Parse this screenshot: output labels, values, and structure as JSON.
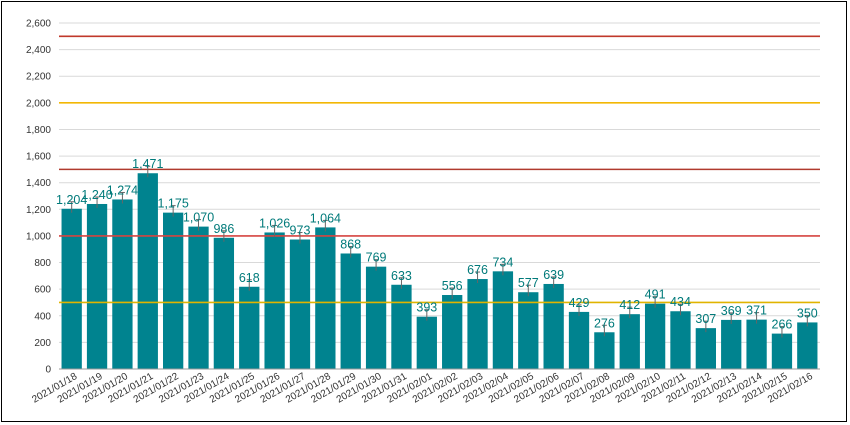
{
  "chart_data": {
    "type": "bar",
    "categories": [
      "2021/01/18",
      "2021/01/19",
      "2021/01/20",
      "2021/01/21",
      "2021/01/22",
      "2021/01/23",
      "2021/01/24",
      "2021/01/25",
      "2021/01/26",
      "2021/01/27",
      "2021/01/28",
      "2021/01/29",
      "2021/01/30",
      "2021/01/31",
      "2021/02/01",
      "2021/02/02",
      "2021/02/03",
      "2021/02/04",
      "2021/02/05",
      "2021/02/06",
      "2021/02/07",
      "2021/02/08",
      "2021/02/09",
      "2021/02/10",
      "2021/02/11",
      "2021/02/12",
      "2021/02/13",
      "2021/02/14",
      "2021/02/15",
      "2021/02/16"
    ],
    "values": [
      1204,
      1240,
      1274,
      1471,
      1175,
      1070,
      986,
      618,
      1026,
      973,
      1064,
      868,
      769,
      633,
      393,
      556,
      676,
      734,
      577,
      639,
      429,
      276,
      412,
      491,
      434,
      307,
      369,
      371,
      266,
      350
    ],
    "value_labels": [
      "1,204",
      "1,240",
      "1,274",
      "1,471",
      "1,175",
      "1,070",
      "986",
      "618",
      "1,026",
      "973",
      "1,064",
      "868",
      "769",
      "633",
      "393",
      "556",
      "676",
      "734",
      "577",
      "639",
      "429",
      "276",
      "412",
      "491",
      "434",
      "307",
      "369",
      "371",
      "266",
      "350"
    ],
    "ylim": [
      0,
      2600
    ],
    "yticks": [
      0,
      200,
      400,
      600,
      800,
      1000,
      1200,
      1400,
      1600,
      1800,
      2000,
      2200,
      2400,
      2600
    ],
    "ytick_labels": [
      "0",
      "200",
      "400",
      "600",
      "800",
      "1,000",
      "1,200",
      "1,400",
      "1,600",
      "1,800",
      "2,000",
      "2,200",
      "2,400",
      "2,600"
    ],
    "grid": true,
    "bar_color": "#00838f",
    "label_color": "#007a7a",
    "reference_lines": [
      {
        "value": 2500,
        "color": "#c0392b"
      },
      {
        "value": 2000,
        "color": "#f2b705"
      },
      {
        "value": 1500,
        "color": "#b03a2e"
      },
      {
        "value": 1000,
        "color": "#d64541"
      },
      {
        "value": 500,
        "color": "#e0b400"
      }
    ],
    "title": "",
    "xlabel": "",
    "ylabel": ""
  }
}
